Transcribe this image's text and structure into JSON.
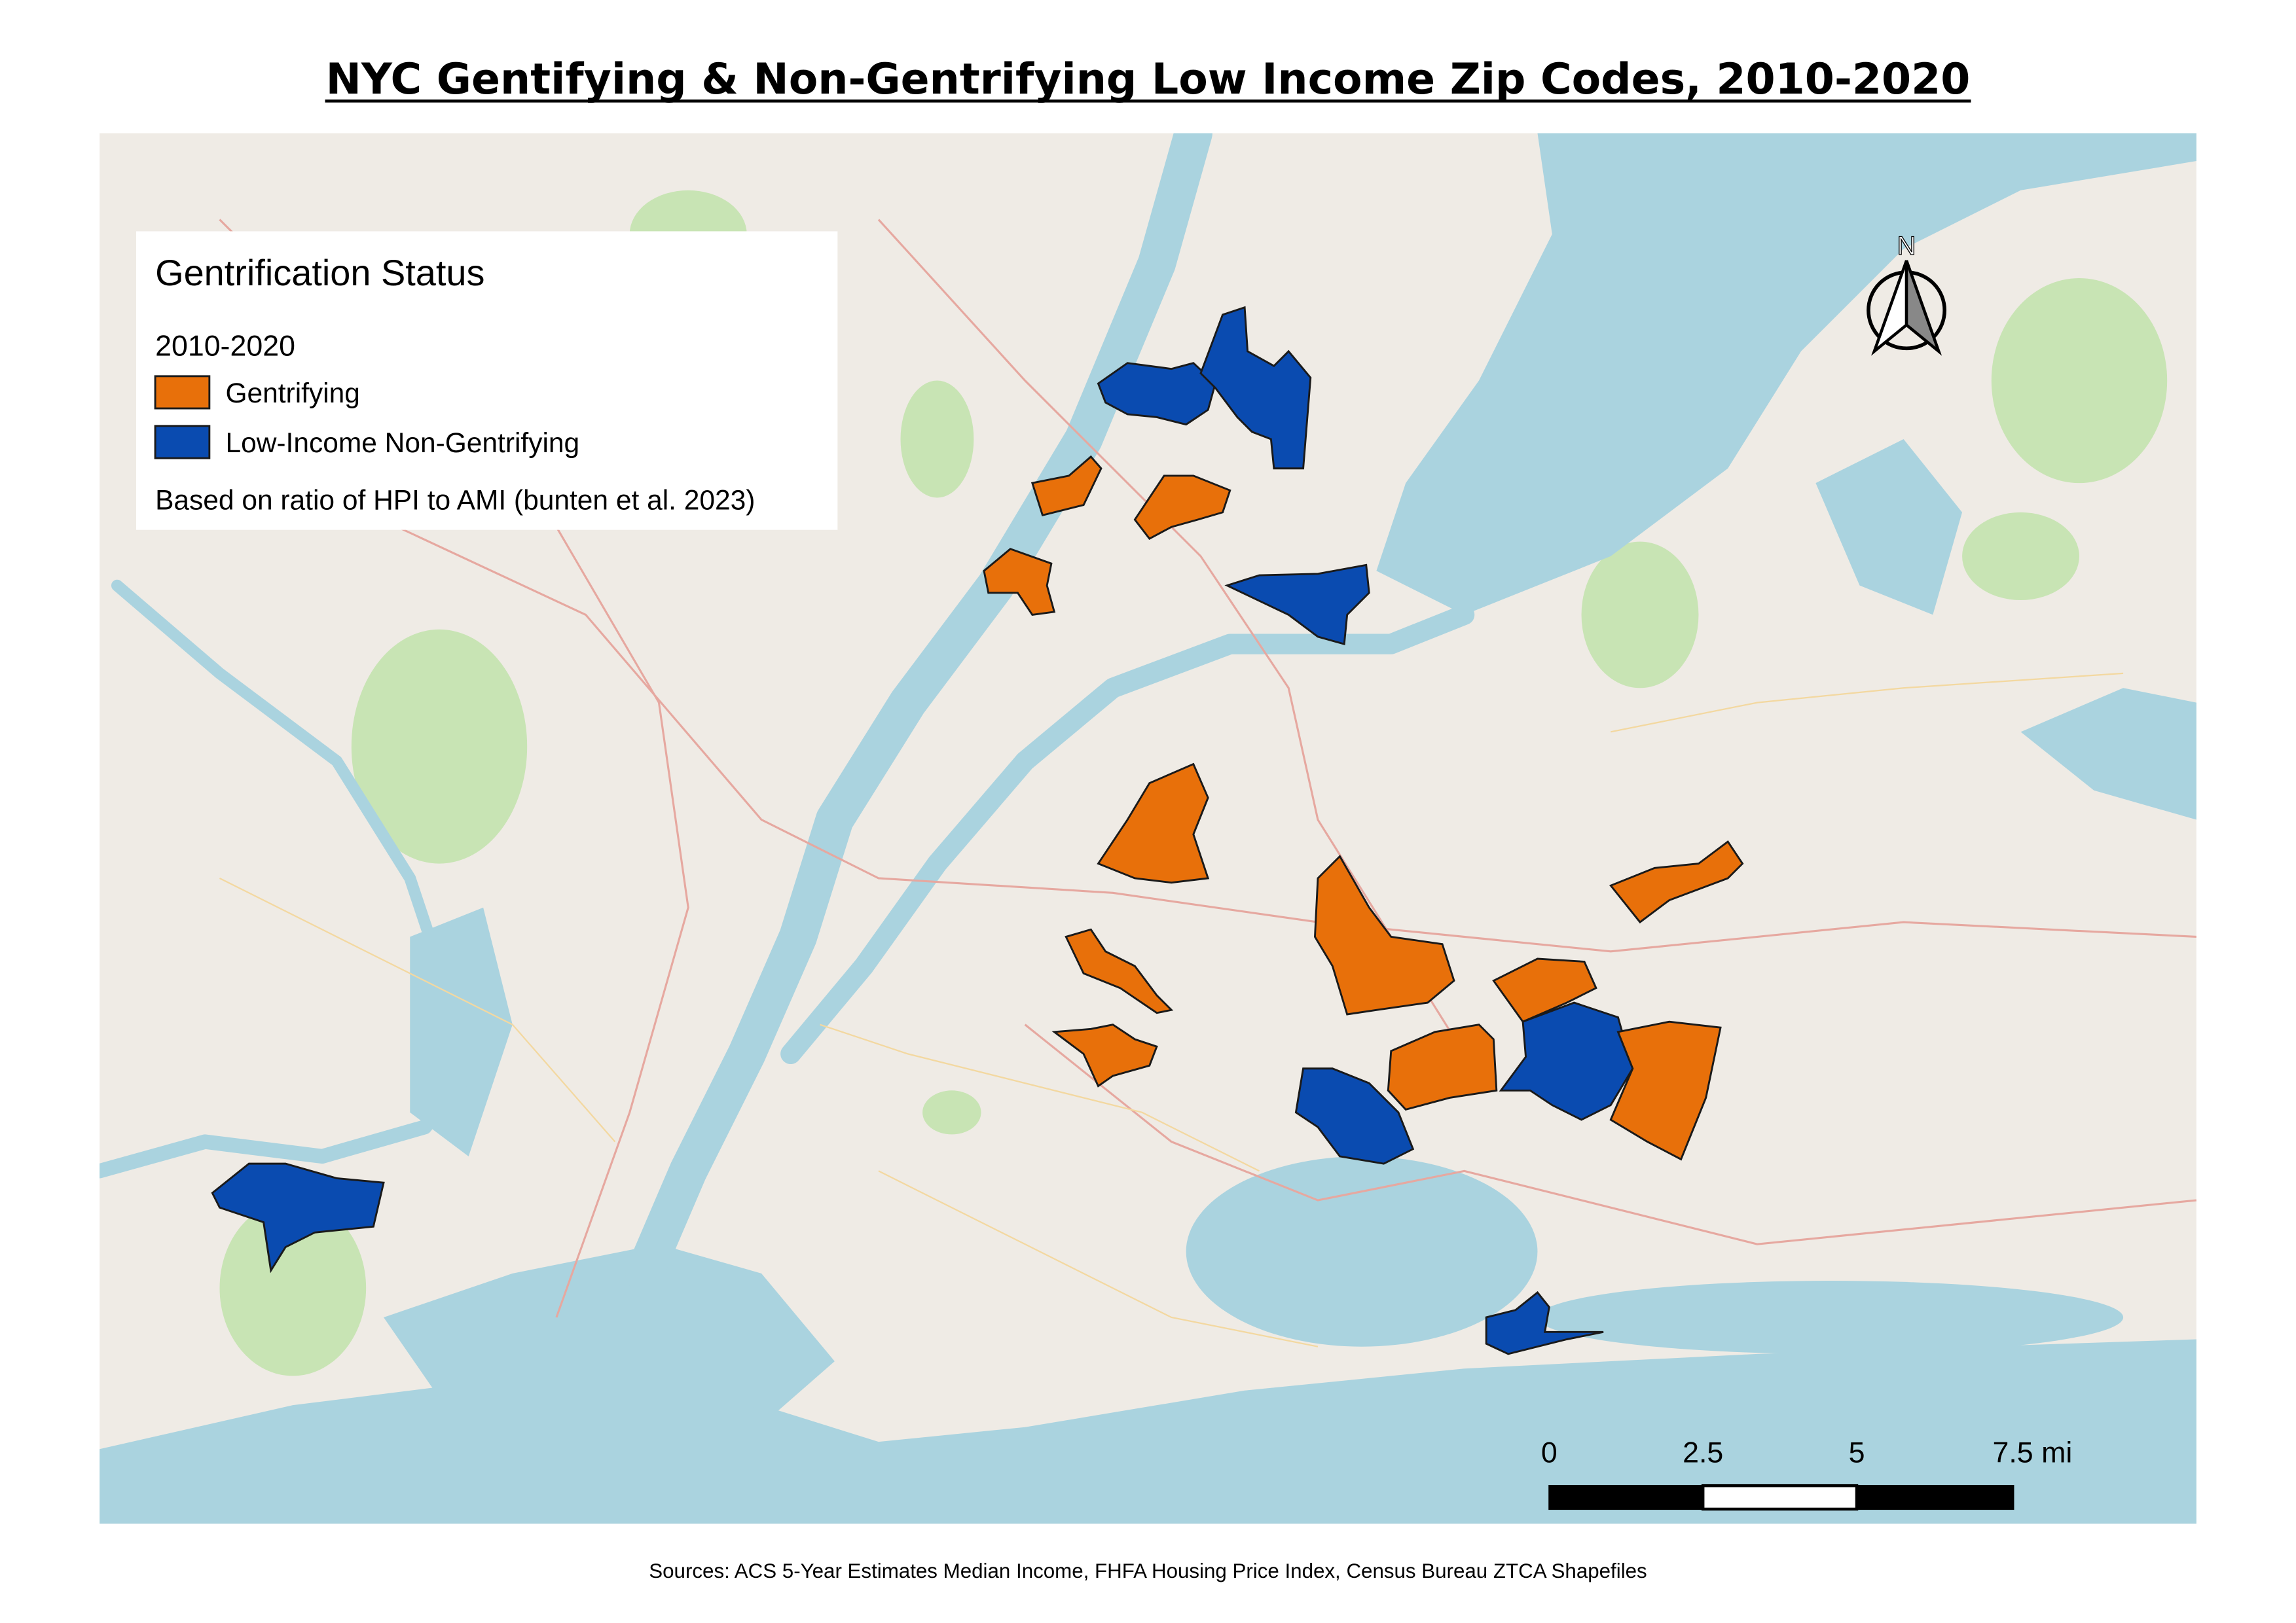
{
  "header": {
    "title": "NYC Gentifying & Non-Gentrifying Low Income Zip Codes, 2010-2020"
  },
  "legend": {
    "title": "Gentrification Status",
    "subtitle": "2010-2020",
    "items": [
      "Gentrifying",
      "Low-Income Non-Gentrifying"
    ],
    "note": "Based on ratio of HPI to AMI (bunten et al. 2023)"
  },
  "north_arrow": {
    "label": "N"
  },
  "scale_bar": {
    "labels": [
      "0",
      "2.5",
      "5",
      "7.5 mi"
    ]
  },
  "footer": {
    "sources": "Sources:  ACS 5-Year Estimates Median Income,  FHFA Housing Price Index,  Census Bureau ZTCA Shapefiles"
  }
}
